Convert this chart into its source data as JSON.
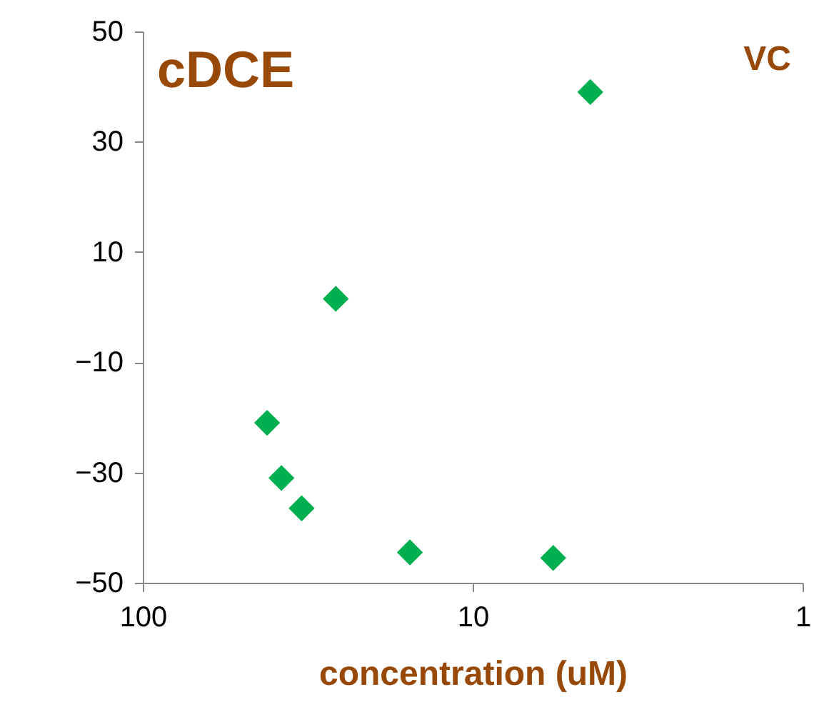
{
  "chart_data": {
    "type": "scatter",
    "x": [
      4.4,
      26,
      42,
      38,
      33,
      15.5,
      5.7
    ],
    "values": [
      39,
      1.5,
      -21,
      -31,
      -36.5,
      -44.5,
      -45.5
    ],
    "color": "#00b050",
    "marker": "diamond",
    "log": "x",
    "xlim": [
      100,
      1
    ],
    "xticks": [
      100,
      10,
      1
    ],
    "ylim": [
      -50,
      50
    ],
    "yticks": [
      -50,
      -30,
      -10,
      10,
      30,
      50
    ],
    "grid": false,
    "xlabel": "concentration (uM)",
    "annotations": [
      "cDCE",
      "VC"
    ]
  }
}
